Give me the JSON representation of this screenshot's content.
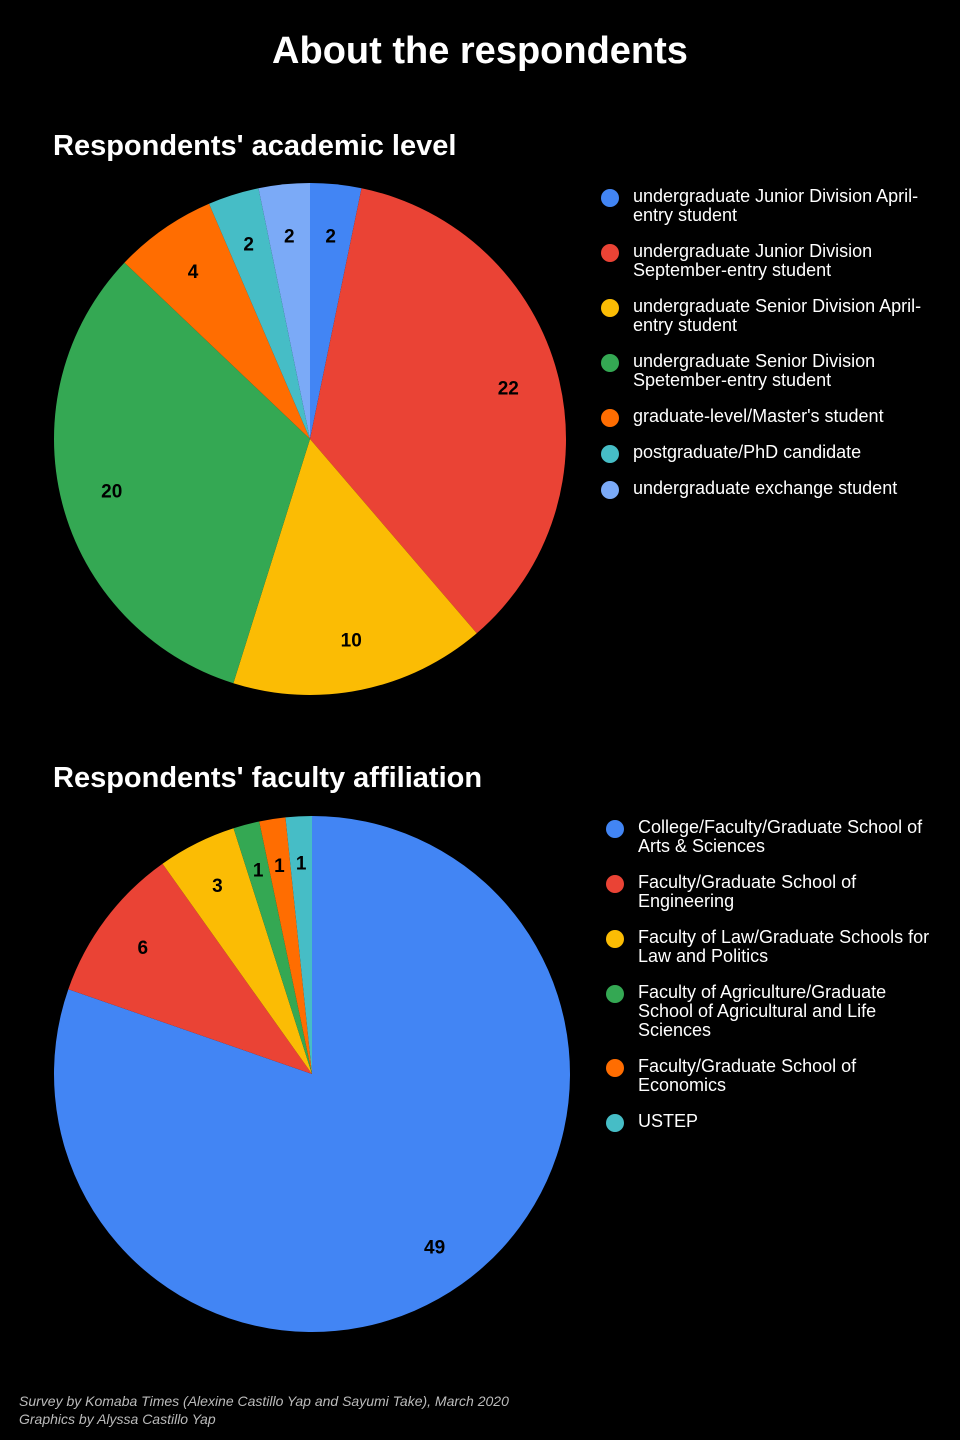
{
  "header": {
    "title": "About the respondents"
  },
  "chart_data": [
    {
      "type": "pie",
      "title": "Respondents' academic level",
      "legend_position": "right",
      "slices": [
        {
          "label": "undergraduate Junior Division April-entry student",
          "value": 2,
          "color": "#4285F4"
        },
        {
          "label": "undergraduate Junior Division September-entry student",
          "value": 22,
          "color": "#EA4335"
        },
        {
          "label": "undergraduate Senior Division April-entry student",
          "value": 10,
          "color": "#FBBC04"
        },
        {
          "label": "undergraduate Senior Division Spetember-entry student",
          "value": 20,
          "color": "#34A853"
        },
        {
          "label": "graduate-level/Master's student",
          "value": 4,
          "color": "#FF6D01"
        },
        {
          "label": "postgraduate/PhD candidate",
          "value": 2,
          "color": "#46BDC6"
        },
        {
          "label": "undergraduate exchange student",
          "value": 2,
          "color": "#7BAAF7"
        }
      ]
    },
    {
      "type": "pie",
      "title": "Respondents' faculty affiliation",
      "legend_position": "right",
      "slices": [
        {
          "label": "College/Faculty/Graduate School of Arts & Sciences",
          "value": 49,
          "color": "#4285F4"
        },
        {
          "label": "Faculty/Graduate School of Engineering",
          "value": 6,
          "color": "#EA4335"
        },
        {
          "label": "Faculty of Law/Graduate Schools for Law and Politics",
          "value": 3,
          "color": "#FBBC04"
        },
        {
          "label": "Faculty of Agriculture/Graduate School of Agricultural and Life Sciences",
          "value": 1,
          "color": "#34A853"
        },
        {
          "label": "Faculty/Graduate School of Economics",
          "value": 1,
          "color": "#FF6D01"
        },
        {
          "label": "USTEP",
          "value": 1,
          "color": "#46BDC6"
        }
      ]
    }
  ],
  "footer": {
    "line1": "Survey by Komaba Times (Alexine Castillo Yap and Sayumi Take), March 2020",
    "line2": "Graphics by Alyssa Castillo Yap"
  }
}
